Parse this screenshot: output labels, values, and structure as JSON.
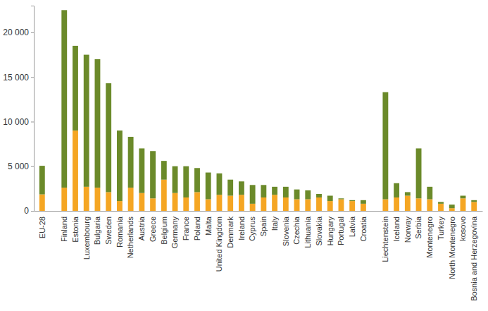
{
  "chart_data": {
    "type": "bar",
    "stacked": true,
    "grid": false,
    "categories": [
      "EU-28",
      null,
      "Finland",
      "Estonia",
      "Luxembourg",
      "Bulgaria",
      "Sweden",
      "Romania",
      "Netherlands",
      "Austria",
      "Greece",
      "Belgium",
      "Germany",
      "France",
      "Poland",
      "Malta",
      "United Kingdom",
      "Denmark",
      "Ireland",
      "Cyprus",
      "Spain",
      "Italy",
      "Slovenia",
      "Czechia",
      "Lithuania",
      "Slovakia",
      "Hungary",
      "Portugal",
      "Latvia",
      "Croatia",
      null,
      "Liechtenstein",
      "Iceland",
      "Norway",
      "Serbia",
      "Montenegro",
      "Turkey",
      "North Montenegro",
      "kosovo",
      "Bosnia and Herzegovina"
    ],
    "series": [
      {
        "color": "#f5a623",
        "values": [
          1850,
          null,
          2600,
          9000,
          2700,
          2600,
          2100,
          1100,
          2600,
          2000,
          1400,
          3500,
          2000,
          1500,
          2100,
          1300,
          1800,
          1700,
          1800,
          800,
          1500,
          1800,
          1500,
          1300,
          1300,
          1500,
          1100,
          1300,
          1100,
          800,
          null,
          1300,
          1500,
          1700,
          1400,
          1300,
          800,
          300,
          1400,
          1000
        ]
      },
      {
        "color": "#6b8a2a",
        "values": [
          3200,
          null,
          19900,
          9500,
          14800,
          14400,
          12200,
          7900,
          5700,
          5000,
          5300,
          2100,
          3000,
          3500,
          2700,
          3000,
          2400,
          1800,
          1500,
          2100,
          1400,
          900,
          1200,
          1100,
          1000,
          400,
          600,
          100,
          100,
          400,
          null,
          12000,
          1600,
          400,
          5600,
          1400,
          200,
          400,
          300,
          200
        ]
      }
    ],
    "ylim": [
      0,
      23000
    ],
    "yticks": [
      0,
      {
        "value": 5000,
        "label": "5 000"
      },
      {
        "value": 10000,
        "label": "10 000"
      },
      {
        "value": 15000,
        "label": "15 000"
      },
      {
        "value": 20000,
        "label": "20 000"
      }
    ]
  }
}
